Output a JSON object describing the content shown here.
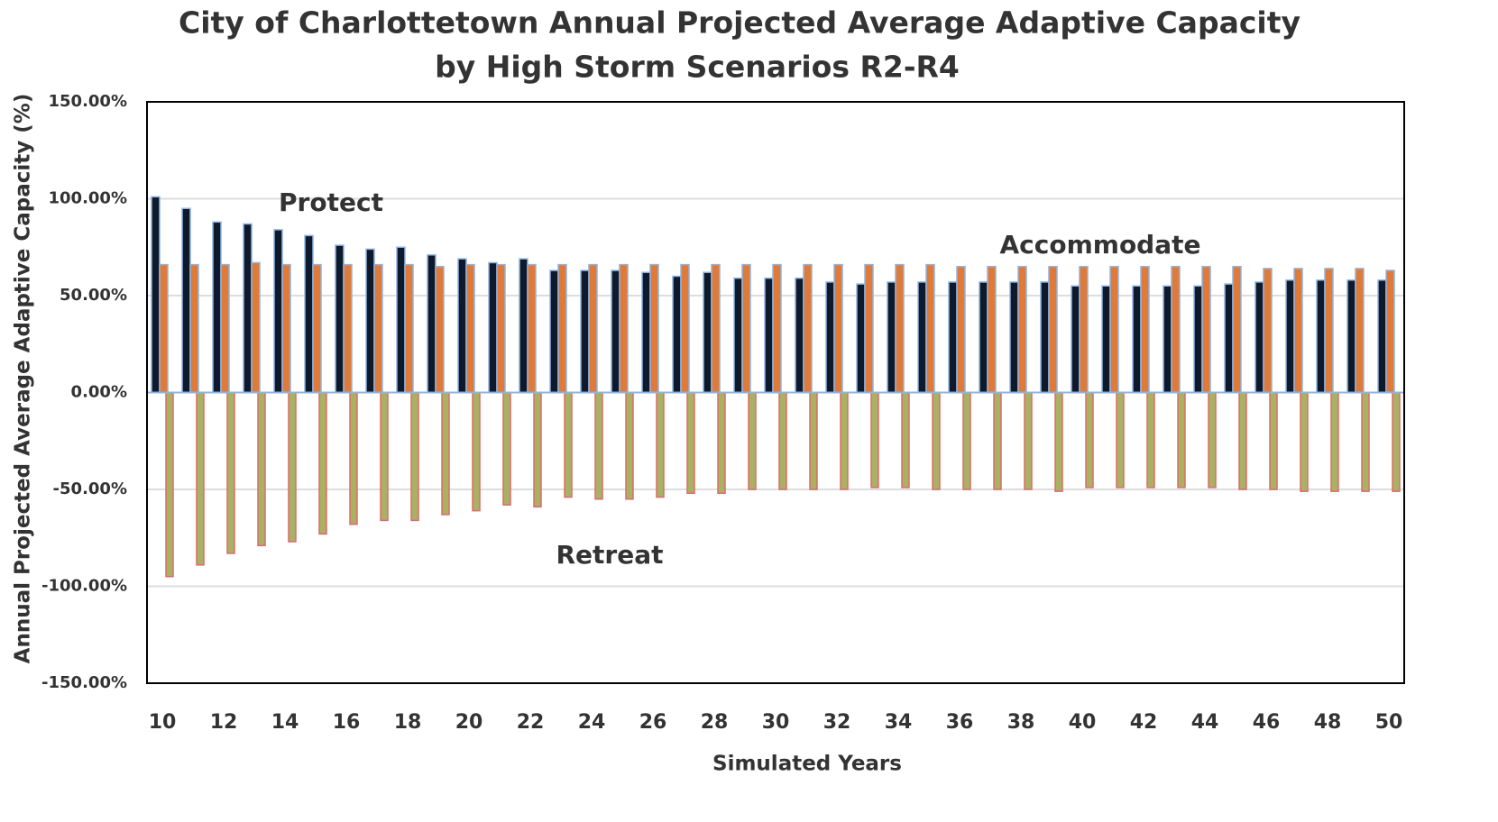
{
  "chart_data": {
    "type": "bar",
    "title": [
      "City of Charlottetown Annual Projected Average Adaptive Capacity",
      "by High Storm Scenarios R2-R4"
    ],
    "x_label": "Simulated Years",
    "y_label": "Annual Projected Average Adaptive Capacity (%)",
    "categories": [
      "10",
      null,
      "12",
      null,
      "14",
      null,
      "16",
      null,
      "18",
      null,
      "20",
      null,
      "22",
      null,
      "24",
      null,
      "26",
      null,
      "28",
      null,
      "30",
      null,
      "32",
      null,
      "34",
      null,
      "36",
      null,
      "38",
      null,
      "40",
      null,
      "42",
      null,
      "44",
      null,
      "46",
      null,
      "48",
      null,
      "50"
    ],
    "series": [
      {
        "name": "Protect",
        "color": "#0e1a2c",
        "values": [
          101,
          95,
          88,
          87,
          84,
          81,
          76,
          74,
          75,
          71,
          69,
          67,
          69,
          63,
          63,
          63,
          62,
          60,
          62,
          59,
          59,
          59,
          57,
          56,
          57,
          57,
          57,
          57,
          57,
          57,
          55,
          55,
          55,
          55,
          55,
          56,
          57,
          58,
          58,
          58,
          58
        ]
      },
      {
        "name": "Accommodate",
        "color": "#e07a38",
        "values": [
          66,
          66,
          66,
          67,
          66,
          66,
          66,
          66,
          66,
          65,
          66,
          66,
          66,
          66,
          66,
          66,
          66,
          66,
          66,
          66,
          66,
          66,
          66,
          66,
          66,
          66,
          65,
          65,
          65,
          65,
          65,
          65,
          65,
          65,
          65,
          65,
          64,
          64,
          64,
          64,
          63
        ]
      },
      {
        "name": "Retreat",
        "color": "#a9b163",
        "values": [
          -95,
          -89,
          -83,
          -79,
          -77,
          -73,
          -68,
          -66,
          -66,
          -63,
          -61,
          -58,
          -59,
          -54,
          -55,
          -55,
          -54,
          -52,
          -52,
          -50,
          -50,
          -50,
          -50,
          -49,
          -49,
          -50,
          -50,
          -50,
          -50,
          -51,
          -49,
          -49,
          -49,
          -49,
          -49,
          -50,
          -50,
          -51,
          -51,
          -51,
          -51
        ]
      }
    ],
    "ylim": [
      -150,
      150
    ],
    "yticks": [
      {
        "value": -150,
        "label": "-150.00%"
      },
      {
        "value": -100,
        "label": "-100.00%"
      },
      {
        "value": -50,
        "label": "-50.00%"
      },
      {
        "value": 0,
        "label": "0.00%"
      },
      {
        "value": 50,
        "label": "50.00%"
      },
      {
        "value": 100,
        "label": "100.00%"
      },
      {
        "value": 150,
        "label": "150.00%"
      }
    ],
    "grid": true
  }
}
